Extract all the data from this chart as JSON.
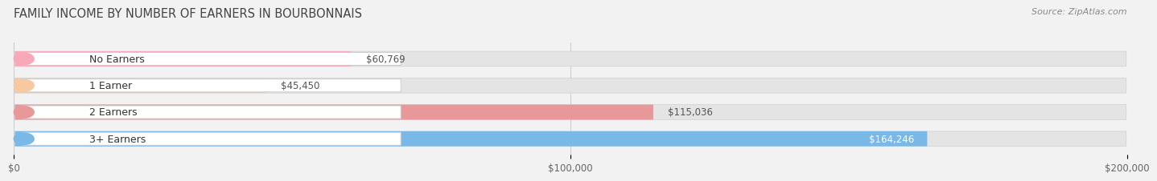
{
  "title": "FAMILY INCOME BY NUMBER OF EARNERS IN BOURBONNAIS",
  "source": "Source: ZipAtlas.com",
  "categories": [
    "No Earners",
    "1 Earner",
    "2 Earners",
    "3+ Earners"
  ],
  "values": [
    60769,
    45450,
    115036,
    164246
  ],
  "bar_colors": [
    "#f9a8b8",
    "#f8c8a0",
    "#e89898",
    "#7ab8e8"
  ],
  "value_labels": [
    "$60,769",
    "$45,450",
    "$115,036",
    "$164,246"
  ],
  "value_inside": [
    false,
    false,
    false,
    true
  ],
  "xlim": [
    0,
    200000
  ],
  "xticks": [
    0,
    100000,
    200000
  ],
  "xtick_labels": [
    "$0",
    "$100,000",
    "$200,000"
  ],
  "bar_height": 0.62,
  "background_color": "#f2f2f2",
  "bar_bg_color": "#e4e4e4",
  "title_fontsize": 10.5,
  "source_fontsize": 8,
  "label_fontsize": 9,
  "value_fontsize": 8.5,
  "pill_color": "white",
  "pill_edge_color": "#cccccc",
  "pill_text_color": "#333333",
  "value_text_color": "#555555",
  "value_inside_color": "white"
}
